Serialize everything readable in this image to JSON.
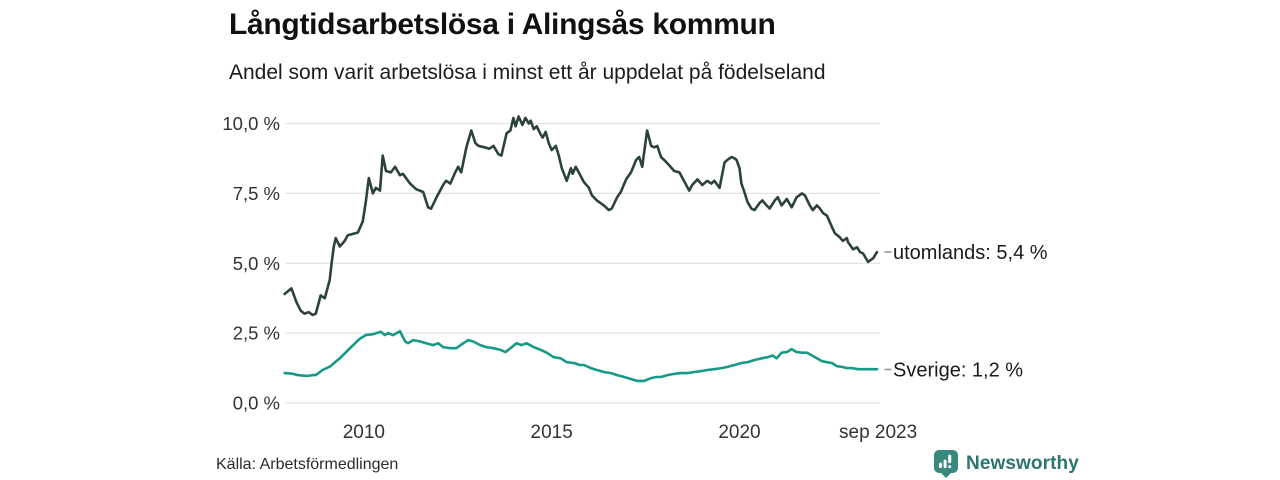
{
  "header": {
    "title": "Långtidsarbetslösa i Alingsås kommun",
    "subtitle": "Andel som varit arbetslösa i minst ett år uppdelat på födelseland"
  },
  "footer": {
    "source": "Källa: Arbetsförmedlingen",
    "brand": "Newsworthy"
  },
  "colors": {
    "series_utomlands": "#2d423c",
    "series_sverige": "#169a86",
    "grid": "#e2e2e2",
    "tick_text": "#333333",
    "end_label_text": "#1b1b1b",
    "leader_dash": "#999999",
    "brand_icon": "#38887d",
    "brand_text": "#2e756d"
  },
  "chart_data": {
    "type": "line",
    "title": "Långtidsarbetslösa i Alingsås kommun",
    "subtitle": "Andel som varit arbetslösa i minst ett år uppdelat på födelseland",
    "xlabel": "",
    "ylabel": "",
    "grid": "horizontal",
    "legend_position": "right-of-line-ends",
    "y_axis": {
      "range": [
        0,
        10.3
      ],
      "ticks": [
        {
          "value": 0,
          "label": "0,0 %"
        },
        {
          "value": 2.5,
          "label": "2,5 %"
        },
        {
          "value": 5,
          "label": "5,0 %"
        },
        {
          "value": 7.5,
          "label": "7,5 %"
        },
        {
          "value": 10,
          "label": "10,0 %"
        }
      ]
    },
    "x_axis": {
      "range": [
        2007.9,
        2023.74
      ],
      "ticks": [
        {
          "value": 2010,
          "label": "2010"
        },
        {
          "value": 2015,
          "label": "2015"
        },
        {
          "value": 2020,
          "label": "2020"
        },
        {
          "value": 2023.69,
          "label": "sep 2023"
        }
      ]
    },
    "series": [
      {
        "name": "utomlands",
        "end_label": "utomlands: 5,4 %",
        "end_value": 5.4,
        "color": "#2d423c",
        "points": [
          [
            2007.89,
            3.9
          ],
          [
            2008.07,
            4.1
          ],
          [
            2008.21,
            3.6
          ],
          [
            2008.32,
            3.3
          ],
          [
            2008.42,
            3.2
          ],
          [
            2008.53,
            3.25
          ],
          [
            2008.64,
            3.15
          ],
          [
            2008.72,
            3.2
          ],
          [
            2008.85,
            3.85
          ],
          [
            2008.96,
            3.75
          ],
          [
            2009.09,
            4.4
          ],
          [
            2009.14,
            5.0
          ],
          [
            2009.2,
            5.6
          ],
          [
            2009.25,
            5.9
          ],
          [
            2009.36,
            5.6
          ],
          [
            2009.49,
            5.8
          ],
          [
            2009.57,
            6.0
          ],
          [
            2009.71,
            6.05
          ],
          [
            2009.84,
            6.1
          ],
          [
            2009.97,
            6.5
          ],
          [
            2010.05,
            7.2
          ],
          [
            2010.13,
            8.05
          ],
          [
            2010.24,
            7.5
          ],
          [
            2010.32,
            7.7
          ],
          [
            2010.43,
            7.6
          ],
          [
            2010.5,
            8.85
          ],
          [
            2010.59,
            8.3
          ],
          [
            2010.72,
            8.25
          ],
          [
            2010.83,
            8.45
          ],
          [
            2010.96,
            8.15
          ],
          [
            2011.04,
            8.2
          ],
          [
            2011.23,
            7.85
          ],
          [
            2011.39,
            7.65
          ],
          [
            2011.58,
            7.55
          ],
          [
            2011.71,
            7.0
          ],
          [
            2011.79,
            6.95
          ],
          [
            2011.93,
            7.35
          ],
          [
            2012.11,
            7.8
          ],
          [
            2012.19,
            7.95
          ],
          [
            2012.3,
            7.85
          ],
          [
            2012.43,
            8.25
          ],
          [
            2012.51,
            8.45
          ],
          [
            2012.59,
            8.25
          ],
          [
            2012.73,
            9.15
          ],
          [
            2012.86,
            9.75
          ],
          [
            2012.97,
            9.3
          ],
          [
            2013.05,
            9.2
          ],
          [
            2013.21,
            9.15
          ],
          [
            2013.34,
            9.1
          ],
          [
            2013.45,
            9.2
          ],
          [
            2013.58,
            8.9
          ],
          [
            2013.66,
            8.85
          ],
          [
            2013.8,
            9.65
          ],
          [
            2013.9,
            9.75
          ],
          [
            2013.98,
            10.2
          ],
          [
            2014.04,
            9.9
          ],
          [
            2014.12,
            10.25
          ],
          [
            2014.22,
            9.95
          ],
          [
            2014.3,
            10.2
          ],
          [
            2014.39,
            10.0
          ],
          [
            2014.44,
            10.1
          ],
          [
            2014.52,
            9.8
          ],
          [
            2014.6,
            9.9
          ],
          [
            2014.71,
            9.6
          ],
          [
            2014.76,
            9.5
          ],
          [
            2014.84,
            9.7
          ],
          [
            2014.92,
            9.3
          ],
          [
            2015.0,
            9.05
          ],
          [
            2015.11,
            9.2
          ],
          [
            2015.19,
            8.85
          ],
          [
            2015.27,
            8.4
          ],
          [
            2015.4,
            7.95
          ],
          [
            2015.51,
            8.4
          ],
          [
            2015.56,
            8.2
          ],
          [
            2015.64,
            8.45
          ],
          [
            2015.78,
            8.1
          ],
          [
            2015.86,
            7.9
          ],
          [
            2015.99,
            7.7
          ],
          [
            2016.07,
            7.43
          ],
          [
            2016.2,
            7.25
          ],
          [
            2016.39,
            7.07
          ],
          [
            2016.52,
            6.9
          ],
          [
            2016.6,
            6.96
          ],
          [
            2016.74,
            7.36
          ],
          [
            2016.84,
            7.55
          ],
          [
            2016.98,
            8.0
          ],
          [
            2017.11,
            8.25
          ],
          [
            2017.25,
            8.7
          ],
          [
            2017.33,
            8.8
          ],
          [
            2017.41,
            8.45
          ],
          [
            2017.54,
            9.75
          ],
          [
            2017.65,
            9.2
          ],
          [
            2017.73,
            9.15
          ],
          [
            2017.81,
            9.2
          ],
          [
            2017.91,
            8.8
          ],
          [
            2017.99,
            8.7
          ],
          [
            2018.13,
            8.5
          ],
          [
            2018.26,
            8.3
          ],
          [
            2018.4,
            8.25
          ],
          [
            2018.58,
            7.8
          ],
          [
            2018.66,
            7.6
          ],
          [
            2018.74,
            7.8
          ],
          [
            2018.88,
            8.0
          ],
          [
            2019.01,
            7.8
          ],
          [
            2019.14,
            7.95
          ],
          [
            2019.25,
            7.85
          ],
          [
            2019.33,
            7.95
          ],
          [
            2019.47,
            7.7
          ],
          [
            2019.6,
            8.6
          ],
          [
            2019.68,
            8.7
          ],
          [
            2019.79,
            8.8
          ],
          [
            2019.87,
            8.75
          ],
          [
            2019.92,
            8.7
          ],
          [
            2020.0,
            8.4
          ],
          [
            2020.05,
            7.85
          ],
          [
            2020.13,
            7.55
          ],
          [
            2020.21,
            7.2
          ],
          [
            2020.32,
            6.95
          ],
          [
            2020.4,
            6.9
          ],
          [
            2020.53,
            7.15
          ],
          [
            2020.61,
            7.25
          ],
          [
            2020.72,
            7.07
          ],
          [
            2020.8,
            6.96
          ],
          [
            2020.94,
            7.25
          ],
          [
            2021.02,
            7.36
          ],
          [
            2021.12,
            7.07
          ],
          [
            2021.26,
            7.3
          ],
          [
            2021.39,
            7.0
          ],
          [
            2021.52,
            7.36
          ],
          [
            2021.66,
            7.5
          ],
          [
            2021.74,
            7.43
          ],
          [
            2021.87,
            7.07
          ],
          [
            2021.95,
            6.9
          ],
          [
            2022.06,
            7.07
          ],
          [
            2022.14,
            6.96
          ],
          [
            2022.22,
            6.8
          ],
          [
            2022.33,
            6.7
          ],
          [
            2022.46,
            6.3
          ],
          [
            2022.54,
            6.07
          ],
          [
            2022.67,
            5.93
          ],
          [
            2022.75,
            5.8
          ],
          [
            2022.86,
            5.9
          ],
          [
            2022.89,
            5.75
          ],
          [
            2023.02,
            5.5
          ],
          [
            2023.13,
            5.57
          ],
          [
            2023.21,
            5.4
          ],
          [
            2023.29,
            5.35
          ],
          [
            2023.42,
            5.05
          ],
          [
            2023.56,
            5.18
          ],
          [
            2023.66,
            5.4
          ]
        ]
      },
      {
        "name": "Sverige",
        "end_label": "Sverige: 1,2 %",
        "end_value": 1.2,
        "color": "#169a86",
        "points": [
          [
            2007.89,
            1.07
          ],
          [
            2008.1,
            1.05
          ],
          [
            2008.24,
            1.0
          ],
          [
            2008.37,
            0.98
          ],
          [
            2008.5,
            0.97
          ],
          [
            2008.64,
            1.0
          ],
          [
            2008.72,
            1.0
          ],
          [
            2008.9,
            1.18
          ],
          [
            2009.09,
            1.3
          ],
          [
            2009.36,
            1.6
          ],
          [
            2009.63,
            1.96
          ],
          [
            2009.89,
            2.3
          ],
          [
            2010.05,
            2.43
          ],
          [
            2010.24,
            2.46
          ],
          [
            2010.45,
            2.55
          ],
          [
            2010.56,
            2.43
          ],
          [
            2010.64,
            2.5
          ],
          [
            2010.78,
            2.43
          ],
          [
            2010.96,
            2.57
          ],
          [
            2011.1,
            2.2
          ],
          [
            2011.18,
            2.14
          ],
          [
            2011.31,
            2.25
          ],
          [
            2011.5,
            2.2
          ],
          [
            2011.66,
            2.14
          ],
          [
            2011.84,
            2.07
          ],
          [
            2011.98,
            2.14
          ],
          [
            2012.11,
            2.0
          ],
          [
            2012.3,
            1.96
          ],
          [
            2012.46,
            1.96
          ],
          [
            2012.65,
            2.14
          ],
          [
            2012.78,
            2.25
          ],
          [
            2012.91,
            2.2
          ],
          [
            2013.1,
            2.07
          ],
          [
            2013.26,
            2.0
          ],
          [
            2013.45,
            1.96
          ],
          [
            2013.64,
            1.9
          ],
          [
            2013.77,
            1.82
          ],
          [
            2013.9,
            1.96
          ],
          [
            2014.06,
            2.14
          ],
          [
            2014.2,
            2.07
          ],
          [
            2014.33,
            2.14
          ],
          [
            2014.52,
            2.0
          ],
          [
            2014.71,
            1.9
          ],
          [
            2014.87,
            1.8
          ],
          [
            2015.05,
            1.64
          ],
          [
            2015.24,
            1.6
          ],
          [
            2015.4,
            1.46
          ],
          [
            2015.59,
            1.43
          ],
          [
            2015.75,
            1.36
          ],
          [
            2015.86,
            1.36
          ],
          [
            2016.04,
            1.25
          ],
          [
            2016.2,
            1.18
          ],
          [
            2016.39,
            1.11
          ],
          [
            2016.58,
            1.07
          ],
          [
            2016.74,
            1.0
          ],
          [
            2016.93,
            0.93
          ],
          [
            2017.11,
            0.86
          ],
          [
            2017.27,
            0.79
          ],
          [
            2017.46,
            0.79
          ],
          [
            2017.65,
            0.89
          ],
          [
            2017.78,
            0.93
          ],
          [
            2017.91,
            0.93
          ],
          [
            2018.08,
            1.0
          ],
          [
            2018.26,
            1.04
          ],
          [
            2018.45,
            1.07
          ],
          [
            2018.61,
            1.07
          ],
          [
            2018.8,
            1.11
          ],
          [
            2018.98,
            1.14
          ],
          [
            2019.14,
            1.18
          ],
          [
            2019.33,
            1.21
          ],
          [
            2019.52,
            1.25
          ],
          [
            2019.68,
            1.29
          ],
          [
            2019.87,
            1.36
          ],
          [
            2020.05,
            1.43
          ],
          [
            2020.21,
            1.46
          ],
          [
            2020.4,
            1.54
          ],
          [
            2020.59,
            1.6
          ],
          [
            2020.75,
            1.64
          ],
          [
            2020.88,
            1.7
          ],
          [
            2020.99,
            1.6
          ],
          [
            2021.12,
            1.8
          ],
          [
            2021.26,
            1.82
          ],
          [
            2021.39,
            1.93
          ],
          [
            2021.52,
            1.82
          ],
          [
            2021.66,
            1.8
          ],
          [
            2021.79,
            1.8
          ],
          [
            2021.93,
            1.7
          ],
          [
            2022.06,
            1.6
          ],
          [
            2022.19,
            1.5
          ],
          [
            2022.33,
            1.46
          ],
          [
            2022.46,
            1.43
          ],
          [
            2022.59,
            1.32
          ],
          [
            2022.73,
            1.29
          ],
          [
            2022.86,
            1.25
          ],
          [
            2023.0,
            1.25
          ],
          [
            2023.16,
            1.21
          ],
          [
            2023.34,
            1.21
          ],
          [
            2023.53,
            1.21
          ],
          [
            2023.66,
            1.21
          ]
        ]
      }
    ]
  }
}
